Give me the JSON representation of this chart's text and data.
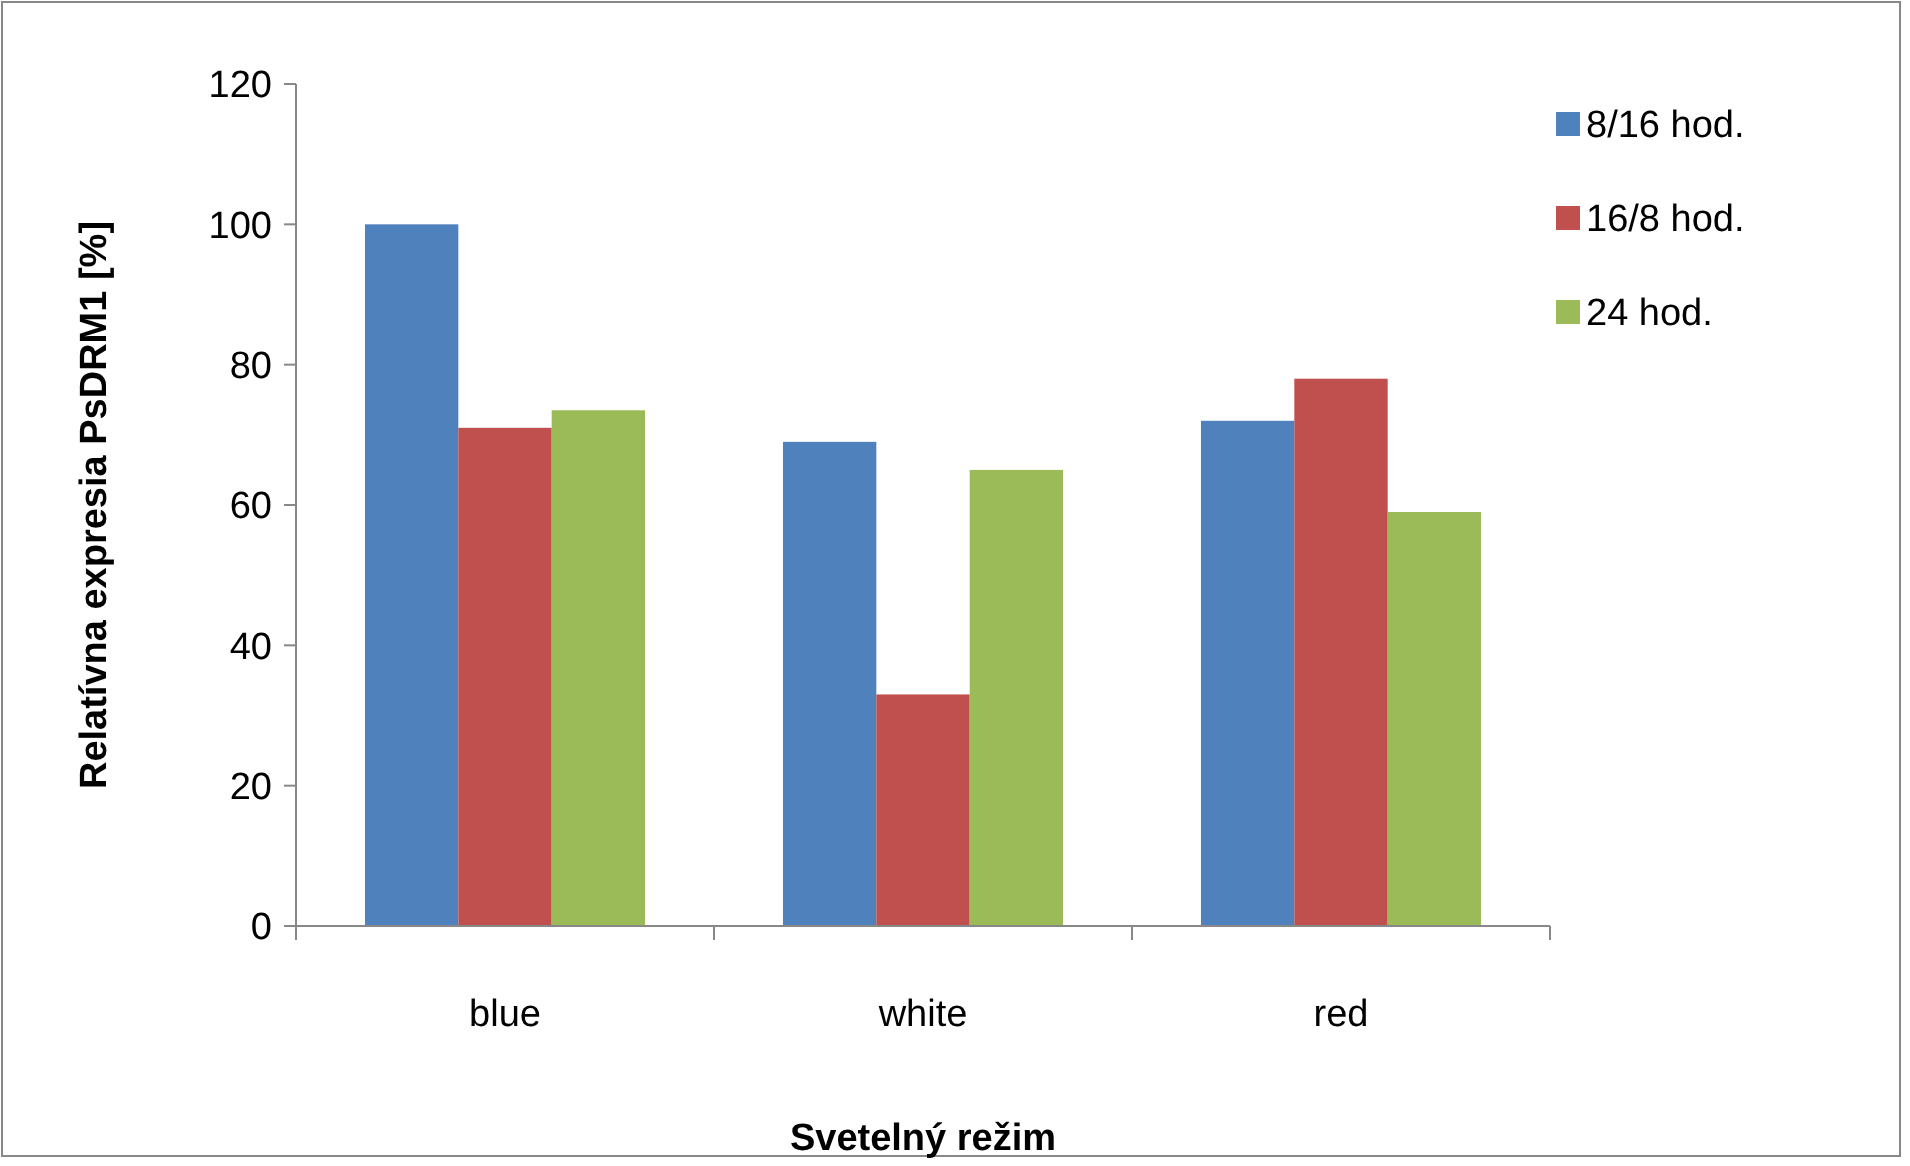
{
  "chart_data": {
    "type": "bar",
    "xlabel": "Svetelný režim",
    "ylabel": "Relatívna expresia PsDRM1 [%]",
    "categories": [
      "blue",
      "white",
      "red"
    ],
    "series": [
      {
        "name": "8/16 hod.",
        "color": "#4f81bd",
        "values": [
          100,
          69,
          72
        ]
      },
      {
        "name": "16/8 hod.",
        "color": "#c0504d",
        "values": [
          71,
          33,
          78
        ]
      },
      {
        "name": "24 hod.",
        "color": "#9bbb59",
        "values": [
          73.5,
          65,
          59
        ]
      }
    ],
    "ylim": [
      0,
      120
    ],
    "yticks": [
      0,
      20,
      40,
      60,
      80,
      100,
      120
    ],
    "grid": false,
    "legend": "right"
  }
}
